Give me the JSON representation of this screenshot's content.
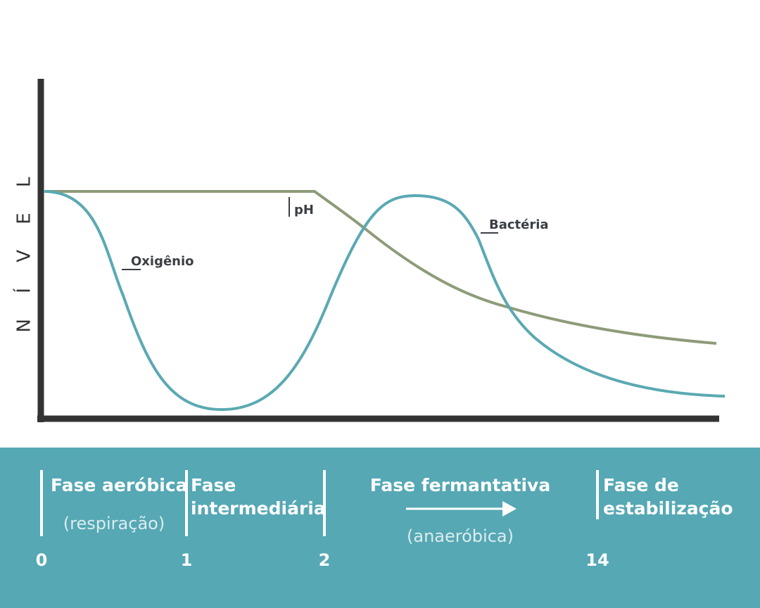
{
  "y_axis_label": "N Í V E L",
  "curve_labels": {
    "ph": "pH",
    "oxygen": "Oxigênio",
    "bacteria": "Bactéria"
  },
  "phases": [
    {
      "title_lines": [
        "Fase aeróbica"
      ],
      "note": "(respiração)"
    },
    {
      "title_lines": [
        "Fase",
        "intermediária"
      ]
    },
    {
      "title_lines": [
        "Fase fermantativa"
      ],
      "note": "(anaeróbica)"
    },
    {
      "title_lines": [
        "Fase de",
        "estabilização"
      ]
    }
  ],
  "time_marks": [
    "0",
    "1",
    "2",
    "14"
  ]
}
